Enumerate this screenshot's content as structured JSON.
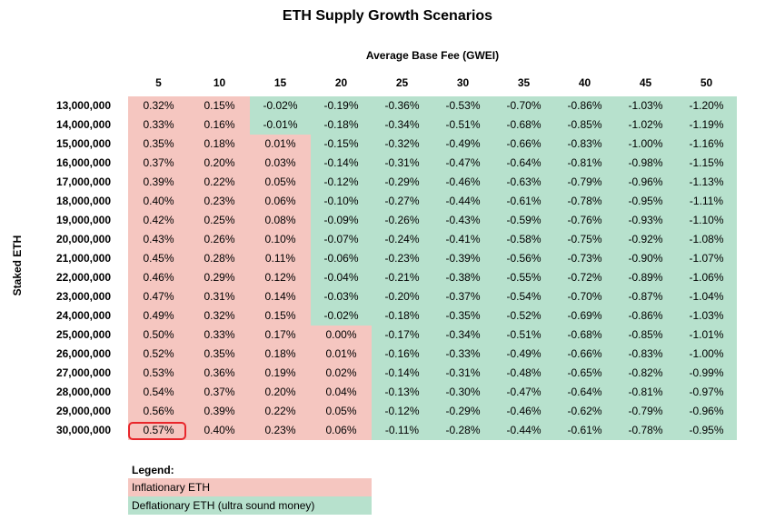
{
  "chart_data": {
    "type": "table",
    "title": "ETH Supply Growth Scenarios",
    "column_axis_label": "Average Base Fee (GWEI)",
    "row_axis_label": "Staked ETH",
    "columns": [
      "5",
      "10",
      "15",
      "20",
      "25",
      "30",
      "35",
      "40",
      "45",
      "50"
    ],
    "rows": [
      {
        "label": "13,000,000",
        "values": [
          "0.32%",
          "0.15%",
          "-0.02%",
          "-0.19%",
          "-0.36%",
          "-0.53%",
          "-0.70%",
          "-0.86%",
          "-1.03%",
          "-1.20%"
        ]
      },
      {
        "label": "14,000,000",
        "values": [
          "0.33%",
          "0.16%",
          "-0.01%",
          "-0.18%",
          "-0.34%",
          "-0.51%",
          "-0.68%",
          "-0.85%",
          "-1.02%",
          "-1.19%"
        ]
      },
      {
        "label": "15,000,000",
        "values": [
          "0.35%",
          "0.18%",
          "0.01%",
          "-0.15%",
          "-0.32%",
          "-0.49%",
          "-0.66%",
          "-0.83%",
          "-1.00%",
          "-1.16%"
        ]
      },
      {
        "label": "16,000,000",
        "values": [
          "0.37%",
          "0.20%",
          "0.03%",
          "-0.14%",
          "-0.31%",
          "-0.47%",
          "-0.64%",
          "-0.81%",
          "-0.98%",
          "-1.15%"
        ]
      },
      {
        "label": "17,000,000",
        "values": [
          "0.39%",
          "0.22%",
          "0.05%",
          "-0.12%",
          "-0.29%",
          "-0.46%",
          "-0.63%",
          "-0.79%",
          "-0.96%",
          "-1.13%"
        ]
      },
      {
        "label": "18,000,000",
        "values": [
          "0.40%",
          "0.23%",
          "0.06%",
          "-0.10%",
          "-0.27%",
          "-0.44%",
          "-0.61%",
          "-0.78%",
          "-0.95%",
          "-1.11%"
        ]
      },
      {
        "label": "19,000,000",
        "values": [
          "0.42%",
          "0.25%",
          "0.08%",
          "-0.09%",
          "-0.26%",
          "-0.43%",
          "-0.59%",
          "-0.76%",
          "-0.93%",
          "-1.10%"
        ]
      },
      {
        "label": "20,000,000",
        "values": [
          "0.43%",
          "0.26%",
          "0.10%",
          "-0.07%",
          "-0.24%",
          "-0.41%",
          "-0.58%",
          "-0.75%",
          "-0.92%",
          "-1.08%"
        ]
      },
      {
        "label": "21,000,000",
        "values": [
          "0.45%",
          "0.28%",
          "0.11%",
          "-0.06%",
          "-0.23%",
          "-0.39%",
          "-0.56%",
          "-0.73%",
          "-0.90%",
          "-1.07%"
        ]
      },
      {
        "label": "22,000,000",
        "values": [
          "0.46%",
          "0.29%",
          "0.12%",
          "-0.04%",
          "-0.21%",
          "-0.38%",
          "-0.55%",
          "-0.72%",
          "-0.89%",
          "-1.06%"
        ]
      },
      {
        "label": "23,000,000",
        "values": [
          "0.47%",
          "0.31%",
          "0.14%",
          "-0.03%",
          "-0.20%",
          "-0.37%",
          "-0.54%",
          "-0.70%",
          "-0.87%",
          "-1.04%"
        ]
      },
      {
        "label": "24,000,000",
        "values": [
          "0.49%",
          "0.32%",
          "0.15%",
          "-0.02%",
          "-0.18%",
          "-0.35%",
          "-0.52%",
          "-0.69%",
          "-0.86%",
          "-1.03%"
        ]
      },
      {
        "label": "25,000,000",
        "values": [
          "0.50%",
          "0.33%",
          "0.17%",
          "0.00%",
          "-0.17%",
          "-0.34%",
          "-0.51%",
          "-0.68%",
          "-0.85%",
          "-1.01%"
        ]
      },
      {
        "label": "26,000,000",
        "values": [
          "0.52%",
          "0.35%",
          "0.18%",
          "0.01%",
          "-0.16%",
          "-0.33%",
          "-0.49%",
          "-0.66%",
          "-0.83%",
          "-1.00%"
        ]
      },
      {
        "label": "27,000,000",
        "values": [
          "0.53%",
          "0.36%",
          "0.19%",
          "0.02%",
          "-0.14%",
          "-0.31%",
          "-0.48%",
          "-0.65%",
          "-0.82%",
          "-0.99%"
        ]
      },
      {
        "label": "28,000,000",
        "values": [
          "0.54%",
          "0.37%",
          "0.20%",
          "0.04%",
          "-0.13%",
          "-0.30%",
          "-0.47%",
          "-0.64%",
          "-0.81%",
          "-0.97%"
        ]
      },
      {
        "label": "29,000,000",
        "values": [
          "0.56%",
          "0.39%",
          "0.22%",
          "0.05%",
          "-0.12%",
          "-0.29%",
          "-0.46%",
          "-0.62%",
          "-0.79%",
          "-0.96%"
        ]
      },
      {
        "label": "30,000,000",
        "values": [
          "0.57%",
          "0.40%",
          "0.23%",
          "0.06%",
          "-0.11%",
          "-0.28%",
          "-0.44%",
          "-0.61%",
          "-0.78%",
          "-0.95%"
        ]
      }
    ],
    "highlighted_cell": {
      "row": "30,000,000",
      "column": "5"
    },
    "legend": {
      "title": "Legend:",
      "items": [
        {
          "label": "Inflationary ETH",
          "color": "#f5c6c0"
        },
        {
          "label": "Deflationary ETH (ultra sound money)",
          "color": "#b7e1cd"
        }
      ]
    },
    "colors": {
      "inflationary": "#f5c6c0",
      "deflationary": "#b7e1cd",
      "highlight": "#e8262b"
    }
  }
}
